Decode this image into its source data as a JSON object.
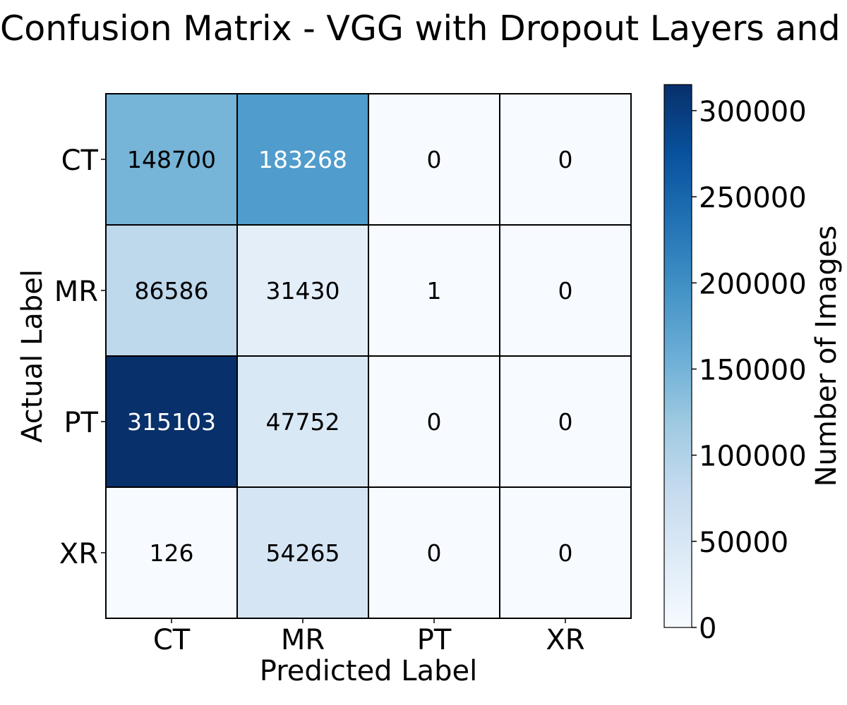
{
  "chart_data": {
    "type": "heatmap",
    "title": "Confusion Matrix - VGG with Dropout Layers and Weight Decay",
    "xlabel": "Predicted Label",
    "ylabel": "Actual Label",
    "x_categories": [
      "CT",
      "MR",
      "PT",
      "XR"
    ],
    "y_categories": [
      "CT",
      "MR",
      "PT",
      "XR"
    ],
    "values": [
      [
        148700,
        183268,
        0,
        0
      ],
      [
        86586,
        31430,
        1,
        0
      ],
      [
        315103,
        47752,
        0,
        0
      ],
      [
        126,
        54265,
        0,
        0
      ]
    ],
    "colorbar": {
      "label": "Number of Images",
      "range": [
        0,
        315103
      ],
      "ticks": [
        0,
        50000,
        100000,
        150000,
        200000,
        250000,
        300000
      ],
      "colormap": "Blues",
      "colors": [
        "#f7fbff",
        "#deebf7",
        "#c6dbef",
        "#9ecae1",
        "#6baed6",
        "#4292c6",
        "#2171b5",
        "#08519c",
        "#08306b"
      ]
    },
    "cell_border_color": "#000000",
    "label_colors": {
      "light": "#000000",
      "dark": "#ffffff"
    }
  }
}
